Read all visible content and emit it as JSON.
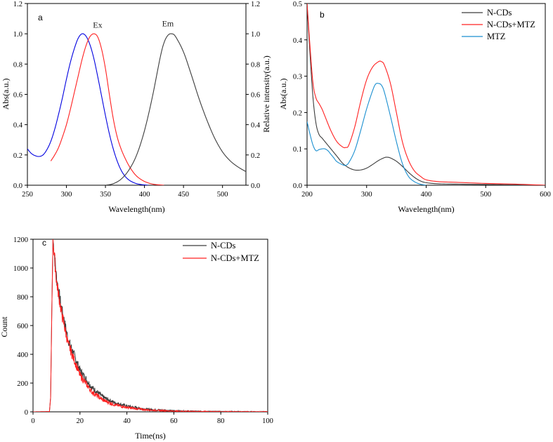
{
  "chart_data": [
    {
      "type": "line",
      "panel_label": "a",
      "xlabel": "Wavelength(nm)",
      "ylabel": "Abs(a.u.)",
      "ylabel_right": "Relative intensity(a.u.)",
      "xlim": [
        250,
        530
      ],
      "ylim": [
        0,
        1.2
      ],
      "ylim_right": [
        0,
        1.2
      ],
      "xticks": [
        250,
        300,
        350,
        400,
        450,
        500
      ],
      "yticks": [
        0.0,
        0.2,
        0.4,
        0.6,
        0.8,
        1.0,
        1.2
      ],
      "yticks_right": [
        0.0,
        0.2,
        0.4,
        0.6,
        0.8,
        1.0,
        1.2
      ],
      "annotations": [
        {
          "text": "Ex",
          "x": 340,
          "y": 1.04
        },
        {
          "text": "Em",
          "x": 430,
          "y": 1.05
        }
      ],
      "series": [
        {
          "color": "#0000e0",
          "x": [
            250,
            255,
            260,
            265,
            270,
            275,
            280,
            285,
            290,
            295,
            300,
            305,
            310,
            315,
            320,
            325,
            330,
            335,
            340,
            345,
            350,
            355,
            360,
            365,
            370,
            375,
            380,
            385,
            390,
            395,
            400,
            405
          ],
          "y": [
            0.24,
            0.21,
            0.195,
            0.19,
            0.2,
            0.235,
            0.29,
            0.37,
            0.47,
            0.58,
            0.7,
            0.81,
            0.9,
            0.97,
            1.0,
            0.985,
            0.93,
            0.84,
            0.72,
            0.59,
            0.46,
            0.34,
            0.24,
            0.16,
            0.1,
            0.06,
            0.035,
            0.02,
            0.01,
            0.005,
            0.002,
            0.0
          ]
        },
        {
          "color": "#ff2020",
          "x": [
            280,
            285,
            290,
            295,
            300,
            305,
            310,
            315,
            320,
            325,
            330,
            335,
            340,
            345,
            350,
            355,
            360,
            365,
            370,
            375,
            380,
            385,
            390,
            395,
            400,
            405,
            410,
            415,
            420,
            425
          ],
          "y": [
            0.16,
            0.2,
            0.25,
            0.32,
            0.4,
            0.5,
            0.61,
            0.72,
            0.83,
            0.92,
            0.98,
            1.0,
            0.98,
            0.9,
            0.77,
            0.6,
            0.44,
            0.32,
            0.24,
            0.18,
            0.13,
            0.09,
            0.06,
            0.04,
            0.025,
            0.015,
            0.008,
            0.004,
            0.002,
            0.0
          ]
        },
        {
          "color": "#3c3c3c",
          "x": [
            350,
            360,
            370,
            380,
            390,
            400,
            410,
            420,
            425,
            430,
            435,
            440,
            450,
            460,
            470,
            480,
            490,
            500,
            510,
            520,
            530
          ],
          "y": [
            0.0,
            0.01,
            0.04,
            0.1,
            0.2,
            0.36,
            0.58,
            0.84,
            0.94,
            0.99,
            1.0,
            0.98,
            0.88,
            0.73,
            0.57,
            0.43,
            0.31,
            0.22,
            0.16,
            0.12,
            0.09
          ]
        }
      ]
    },
    {
      "type": "line",
      "panel_label": "b",
      "xlabel": "Wavelength(nm)",
      "ylabel": "Abs(a.u.)",
      "xlim": [
        200,
        600
      ],
      "ylim": [
        0,
        0.5
      ],
      "xticks": [
        200,
        300,
        400,
        500,
        600
      ],
      "yticks": [
        0.0,
        0.1,
        0.2,
        0.3,
        0.4,
        0.5
      ],
      "legend_position": "top-right",
      "series": [
        {
          "name": "N-CDs",
          "color": "#3c3c3c",
          "x": [
            200,
            205,
            210,
            215,
            220,
            225,
            230,
            240,
            250,
            260,
            270,
            280,
            290,
            300,
            310,
            320,
            330,
            335,
            340,
            350,
            360,
            370,
            380,
            390,
            400,
            420,
            450,
            500,
            550,
            600
          ],
          "y": [
            0.5,
            0.36,
            0.24,
            0.17,
            0.14,
            0.13,
            0.12,
            0.1,
            0.08,
            0.06,
            0.048,
            0.042,
            0.042,
            0.047,
            0.057,
            0.068,
            0.076,
            0.077,
            0.075,
            0.066,
            0.052,
            0.036,
            0.022,
            0.012,
            0.007,
            0.004,
            0.003,
            0.002,
            0.001,
            0.0
          ]
        },
        {
          "name": "N-CDs+MTZ",
          "color": "#ff2020",
          "x": [
            200,
            205,
            210,
            215,
            220,
            225,
            230,
            240,
            250,
            260,
            265,
            270,
            280,
            290,
            300,
            310,
            320,
            325,
            330,
            340,
            350,
            360,
            370,
            380,
            390,
            400,
            420,
            450,
            500,
            550,
            600
          ],
          "y": [
            0.5,
            0.38,
            0.28,
            0.24,
            0.225,
            0.21,
            0.19,
            0.15,
            0.12,
            0.105,
            0.104,
            0.11,
            0.16,
            0.23,
            0.29,
            0.325,
            0.34,
            0.34,
            0.33,
            0.28,
            0.2,
            0.12,
            0.07,
            0.04,
            0.025,
            0.015,
            0.01,
            0.008,
            0.005,
            0.003,
            0.0
          ]
        },
        {
          "name": "MTZ",
          "color": "#1a8fd0",
          "x": [
            200,
            205,
            210,
            215,
            220,
            225,
            230,
            235,
            240,
            245,
            250,
            260,
            265,
            270,
            280,
            290,
            300,
            310,
            315,
            320,
            325,
            330,
            340,
            350,
            360,
            370,
            380,
            390,
            400
          ],
          "y": [
            0.175,
            0.14,
            0.11,
            0.095,
            0.098,
            0.1,
            0.1,
            0.095,
            0.085,
            0.075,
            0.065,
            0.056,
            0.055,
            0.062,
            0.095,
            0.15,
            0.21,
            0.26,
            0.278,
            0.28,
            0.275,
            0.255,
            0.19,
            0.12,
            0.06,
            0.025,
            0.01,
            0.003,
            0.0
          ]
        }
      ]
    },
    {
      "type": "line",
      "panel_label": "c",
      "xlabel": "Time(ns)",
      "ylabel": "Count",
      "xlim": [
        0,
        100
      ],
      "ylim": [
        0,
        1200
      ],
      "xticks": [
        0,
        20,
        40,
        60,
        80,
        100
      ],
      "yticks": [
        0,
        200,
        400,
        600,
        800,
        1000,
        1200
      ],
      "legend_position": "top-right",
      "series": [
        {
          "name": "N-CDs",
          "color": "#3c3c3c",
          "x": [
            0,
            7,
            7.5,
            8,
            8.5,
            10,
            12,
            15,
            20,
            25,
            30,
            35,
            40,
            45,
            50,
            60,
            70,
            80,
            100
          ],
          "y": [
            0,
            2,
            100,
            700,
            1200,
            930,
            730,
            500,
            290,
            170,
            100,
            62,
            40,
            25,
            16,
            7,
            4,
            2,
            0
          ]
        },
        {
          "name": "N-CDs+MTZ",
          "color": "#ff2020",
          "x": [
            0,
            7,
            7.5,
            8,
            8.5,
            10,
            12,
            15,
            20,
            25,
            30,
            35,
            40,
            45,
            50,
            60,
            70,
            80,
            100
          ],
          "y": [
            0,
            2,
            100,
            700,
            1200,
            910,
            700,
            470,
            255,
            140,
            80,
            48,
            30,
            19,
            12,
            5,
            3,
            1,
            0
          ]
        }
      ]
    }
  ]
}
